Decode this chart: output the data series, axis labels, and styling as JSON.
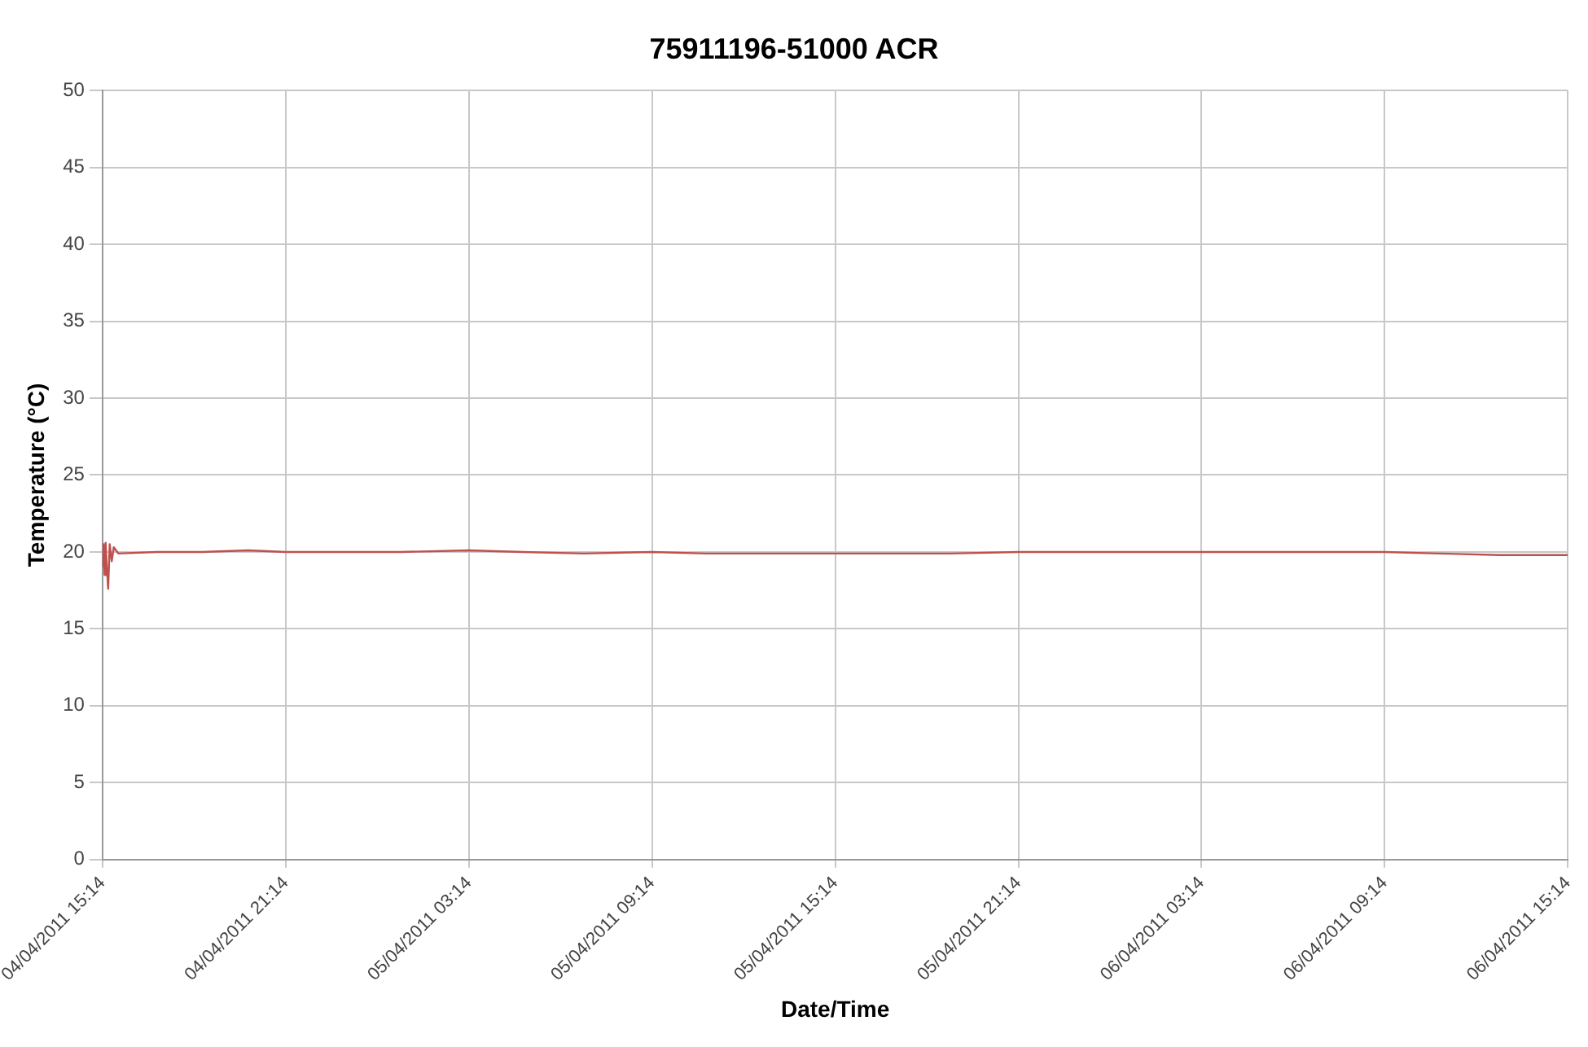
{
  "chart_data": {
    "type": "line",
    "title": "75911196-51000 ACR",
    "xlabel": "Date/Time",
    "ylabel": "Temperature (°C)",
    "x": [
      "2011-04-04T15:14",
      "2011-04-04T15:16",
      "2011-04-04T15:18",
      "2011-04-04T15:20",
      "2011-04-04T15:22",
      "2011-04-04T15:25",
      "2011-04-04T15:28",
      "2011-04-04T15:32",
      "2011-04-04T15:36",
      "2011-04-04T15:45",
      "2011-04-04T17:00",
      "2011-04-04T18:30",
      "2011-04-04T20:00",
      "2011-04-04T21:14",
      "2011-04-04T23:00",
      "2011-04-05T01:00",
      "2011-04-05T03:14",
      "2011-04-05T05:00",
      "2011-04-05T07:00",
      "2011-04-05T09:14",
      "2011-04-05T11:00",
      "2011-04-05T13:00",
      "2011-04-05T15:14",
      "2011-04-05T17:00",
      "2011-04-05T19:00",
      "2011-04-05T21:14",
      "2011-04-05T23:00",
      "2011-04-06T01:00",
      "2011-04-06T03:14",
      "2011-04-06T05:00",
      "2011-04-06T07:00",
      "2011-04-06T09:14",
      "2011-04-06T11:00",
      "2011-04-06T13:00",
      "2011-04-06T15:14"
    ],
    "series": [
      {
        "color": "#c0504d",
        "values": [
          19.0,
          20.5,
          18.5,
          20.6,
          19.2,
          17.6,
          20.5,
          19.4,
          20.3,
          19.9,
          20.0,
          20.0,
          20.1,
          20.0,
          20.0,
          20.0,
          20.1,
          20.0,
          19.9,
          20.0,
          19.9,
          19.9,
          19.9,
          19.9,
          19.9,
          20.0,
          20.0,
          20.0,
          20.0,
          20.0,
          20.0,
          20.0,
          19.9,
          19.8,
          19.8
        ]
      }
    ],
    "xlim": [
      "2011-04-04T15:14",
      "2011-04-06T15:14"
    ],
    "xticks": [
      {
        "value": "2011-04-04T15:14",
        "label": "04/04/2011 15:14"
      },
      {
        "value": "2011-04-04T21:14",
        "label": "04/04/2011 21:14"
      },
      {
        "value": "2011-04-05T03:14",
        "label": "05/04/2011 03:14"
      },
      {
        "value": "2011-04-05T09:14",
        "label": "05/04/2011 09:14"
      },
      {
        "value": "2011-04-05T15:14",
        "label": "05/04/2011 15:14"
      },
      {
        "value": "2011-04-05T21:14",
        "label": "05/04/2011 21:14"
      },
      {
        "value": "2011-04-06T03:14",
        "label": "06/04/2011 03:14"
      },
      {
        "value": "2011-04-06T09:14",
        "label": "06/04/2011 09:14"
      },
      {
        "value": "2011-04-06T15:14",
        "label": "06/04/2011 15:14"
      }
    ],
    "ylim": [
      0,
      50
    ],
    "yticks": [
      0,
      5,
      10,
      15,
      20,
      25,
      30,
      35,
      40,
      45,
      50
    ],
    "grid": true,
    "marker": "none",
    "line_style": "solid"
  }
}
